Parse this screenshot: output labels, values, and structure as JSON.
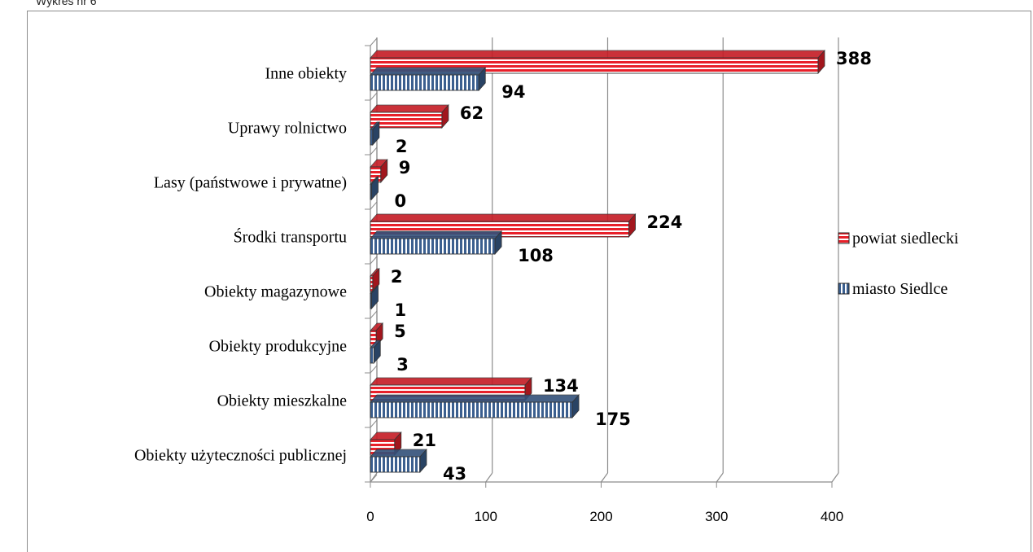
{
  "header": {
    "caption": "Wykres nr 6"
  },
  "chart_data": {
    "type": "bar",
    "orientation": "horizontal",
    "categories": [
      "Inne obiekty",
      "Uprawy rolnictwo",
      "Lasy (państwowe i prywatne)",
      "Środki transportu",
      "Obiekty magazynowe",
      "Obiekty produkcyjne",
      "Obiekty mieszkalne",
      "Obiekty użyteczności publicznej"
    ],
    "series": [
      {
        "name": "powiat siedlecki",
        "values": [
          388,
          62,
          9,
          224,
          2,
          5,
          134,
          21
        ],
        "color": "#e8202a",
        "pattern": "horizontal-stripes"
      },
      {
        "name": "miasto Siedlce",
        "values": [
          94,
          2,
          0,
          108,
          1,
          3,
          175,
          43
        ],
        "color": "#3b5f8f",
        "pattern": "vertical-stripes"
      }
    ],
    "xlim": [
      0,
      400
    ],
    "xticks": [
      0,
      100,
      200,
      300,
      400
    ],
    "grid": true,
    "legend_position": "right",
    "title": "",
    "xlabel": "",
    "ylabel": ""
  }
}
